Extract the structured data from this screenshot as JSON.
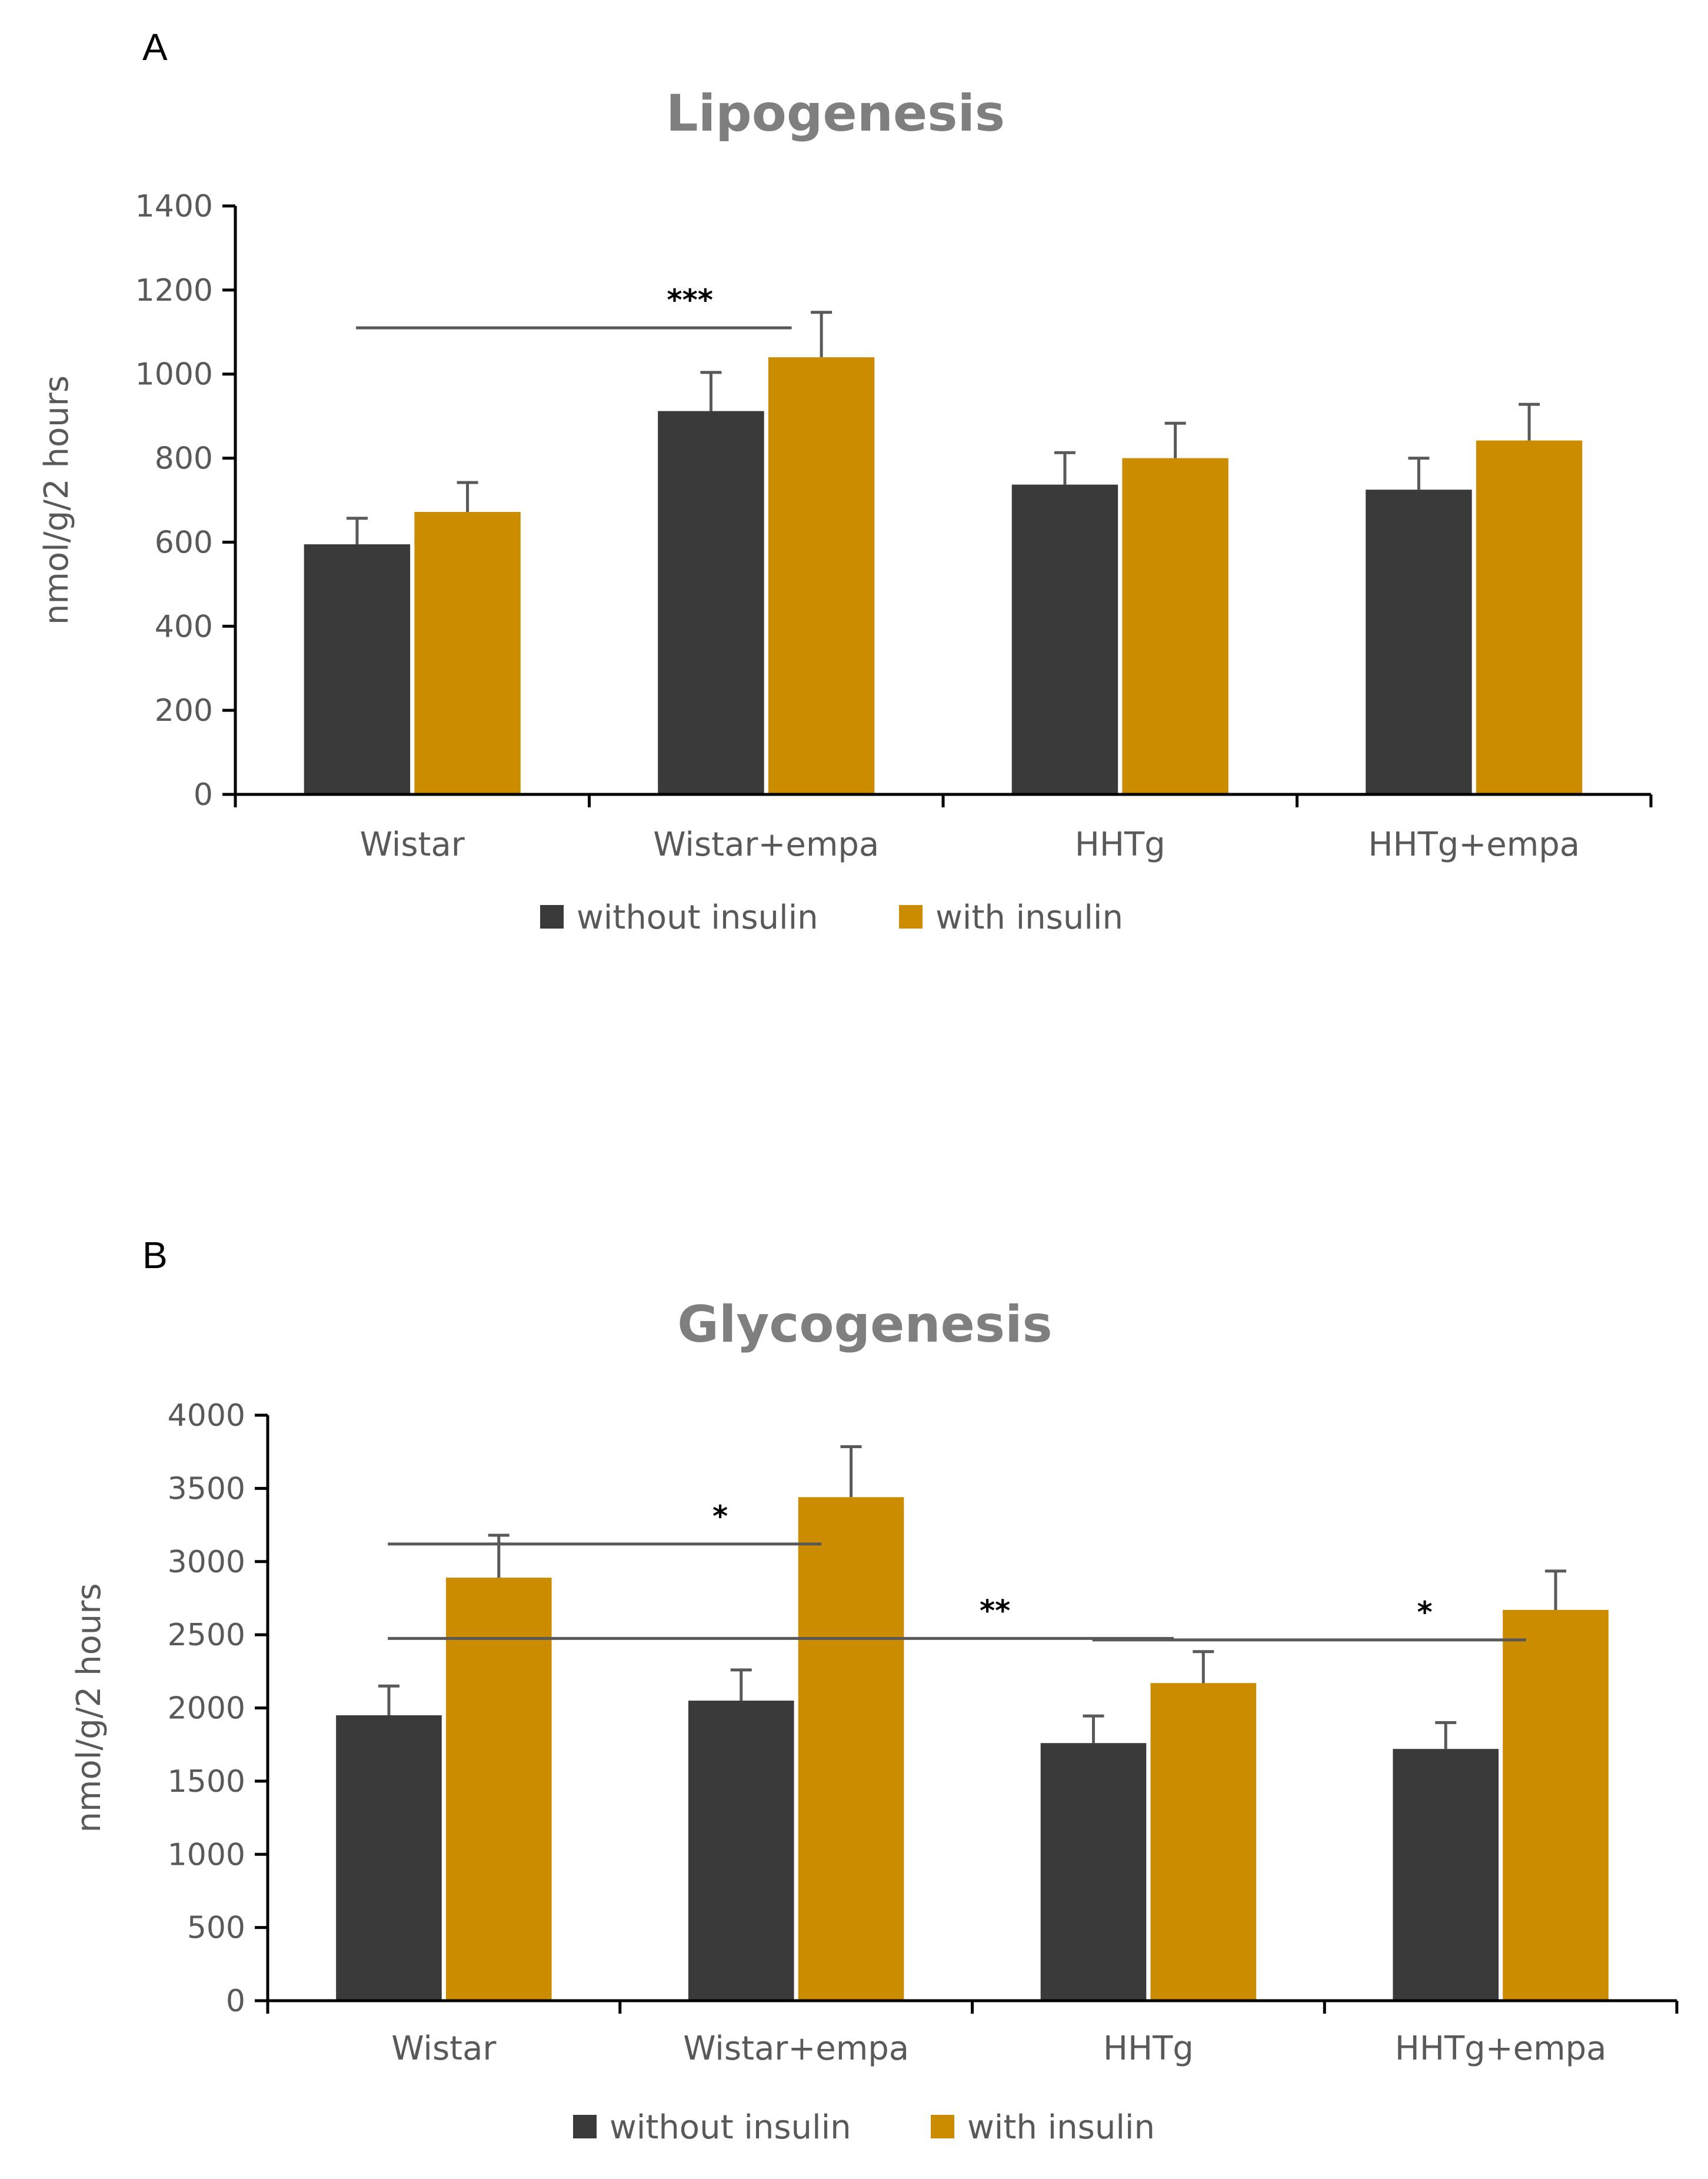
{
  "panels": [
    {
      "letter": "A"
    },
    {
      "letter": "B"
    }
  ],
  "chart_data": [
    {
      "type": "bar",
      "title": "Lipogenesis",
      "xlabel": "",
      "ylabel": "nmol/g/2 hours",
      "ylim": [
        0,
        1400
      ],
      "yticks": [
        0,
        200,
        400,
        600,
        800,
        1000,
        1200,
        1400
      ],
      "categories": [
        "Wistar",
        "Wistar+empa",
        "HHTg",
        "HHTg+empa"
      ],
      "series": [
        {
          "name": "without insulin",
          "color": "#3a3a3a",
          "values": [
            595,
            912,
            737,
            725
          ],
          "errors": [
            62,
            92,
            76,
            75
          ]
        },
        {
          "name": "with insulin",
          "color": "#cc8c00",
          "values": [
            672,
            1040,
            800,
            842
          ],
          "errors": [
            70,
            107,
            83,
            86
          ]
        }
      ],
      "legend": "bottom",
      "significance": [
        {
          "label": "***",
          "from_category": 0,
          "to_category": 1,
          "y": 1110
        }
      ]
    },
    {
      "type": "bar",
      "title": "Glycogenesis",
      "xlabel": "",
      "ylabel": "nmol/g/2 hours",
      "ylim": [
        0,
        4000
      ],
      "yticks": [
        0,
        500,
        1000,
        1500,
        2000,
        2500,
        3000,
        3500,
        4000
      ],
      "categories": [
        "Wistar",
        "Wistar+empa",
        "HHTg",
        "HHTg+empa"
      ],
      "series": [
        {
          "name": "without insulin",
          "color": "#3a3a3a",
          "values": [
            1950,
            2050,
            1760,
            1720
          ],
          "errors": [
            200,
            210,
            185,
            180
          ]
        },
        {
          "name": "with insulin",
          "color": "#cc8c00",
          "values": [
            2890,
            3440,
            2170,
            2670
          ],
          "errors": [
            290,
            345,
            215,
            265
          ]
        }
      ],
      "legend": "bottom",
      "significance": [
        {
          "label": "*",
          "from_category": 0,
          "to_category": 1,
          "y": 3120
        },
        {
          "label": "**",
          "from_category": 0,
          "to_category": 2,
          "y": 2475
        },
        {
          "label": "*",
          "from_category": 2,
          "to_category": 3,
          "y": 2465
        }
      ]
    }
  ]
}
